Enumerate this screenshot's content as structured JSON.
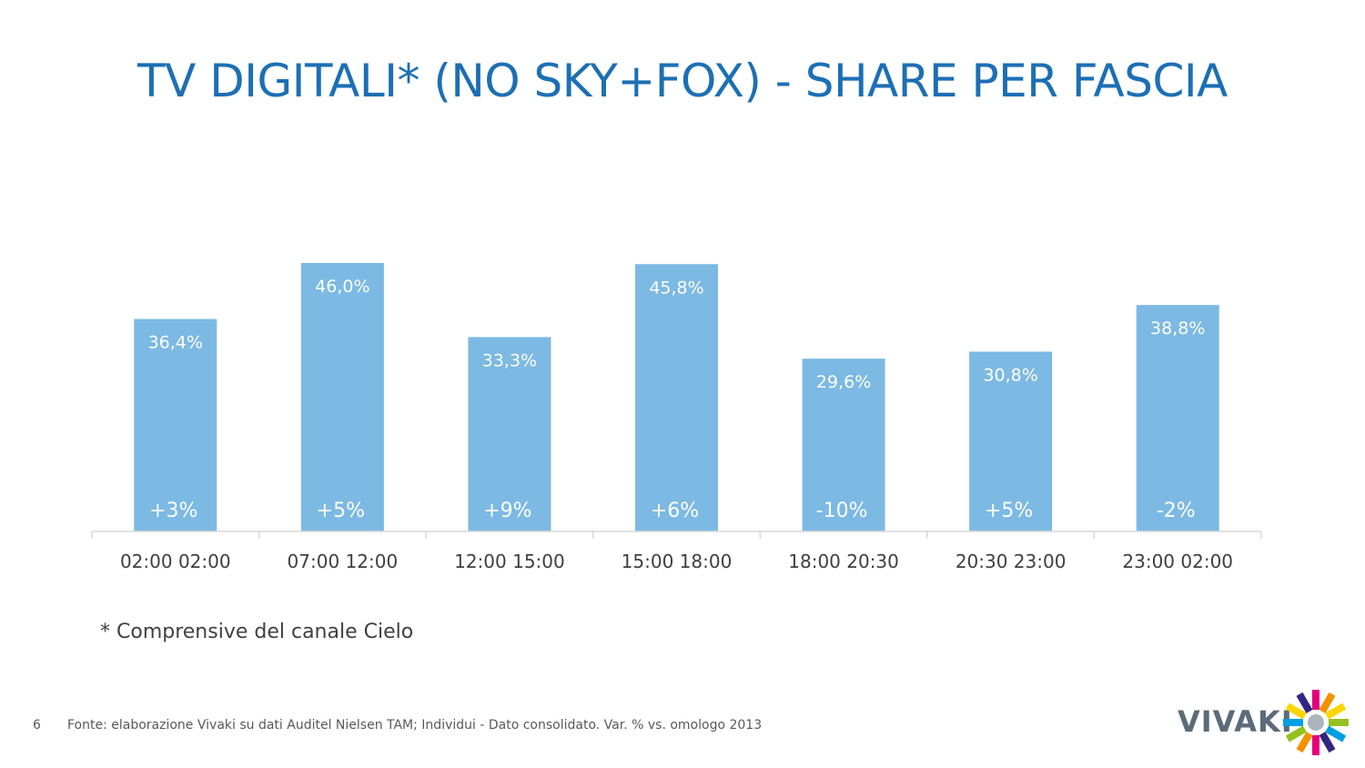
{
  "title": "TV DIGITALI* (NO SKY+FOX) - SHARE PER FASCIA",
  "footnote": "* Comprensive del canale Cielo",
  "page_number": "6",
  "source": "Fonte: elaborazione Vivaki su dati Auditel Nielsen TAM; Individui - Dato consolidato. Var. % vs. omologo 2013",
  "logo_text": "VIVAKI",
  "colors": {
    "title": "#1c6fb4",
    "bar": "#7cb9e3",
    "bar_label": "#ffffff",
    "axis": "#d9d9d9",
    "tick_label": "#404040"
  },
  "chart_data": {
    "type": "bar",
    "title": "",
    "xlabel": "",
    "ylabel": "",
    "categories": [
      "02:00 02:00",
      "07:00 12:00",
      "12:00 15:00",
      "15:00 18:00",
      "18:00 20:30",
      "20:30 23:00",
      "23:00 02:00"
    ],
    "values": [
      36.4,
      46.0,
      33.3,
      45.8,
      29.6,
      30.8,
      38.8
    ],
    "value_labels": [
      "36,4%",
      "46,0%",
      "33,3%",
      "45,8%",
      "29,6%",
      "30,8%",
      "38,8%"
    ],
    "variation_labels": [
      "+3%",
      "+5%",
      "+9%",
      "+6%",
      "-10%",
      "+5%",
      "-2%"
    ],
    "ylim": [
      0,
      46
    ],
    "grid": false,
    "legend": "none"
  }
}
